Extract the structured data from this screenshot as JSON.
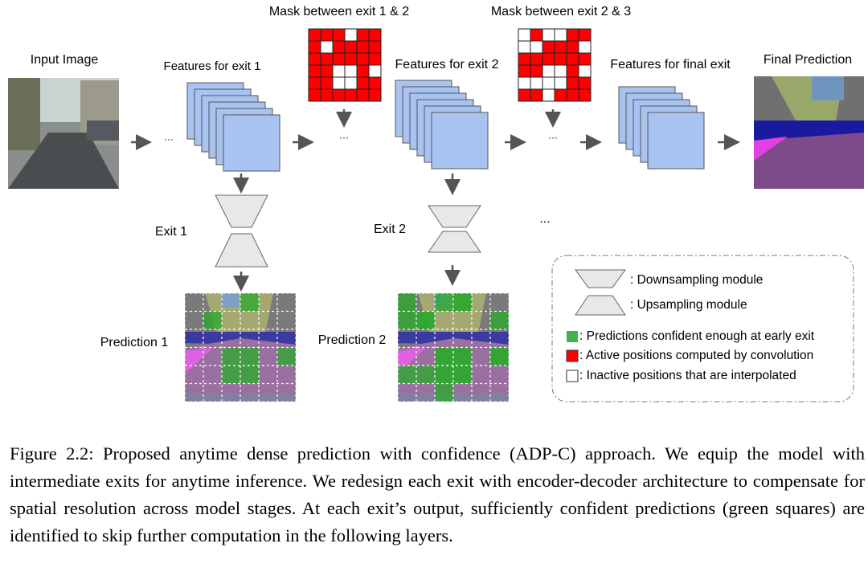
{
  "labels": {
    "input_image": "Input Image",
    "features_exit1": "Features for exit 1",
    "features_exit2": "Features for exit 2",
    "features_final": "Features for final exit",
    "final_prediction": "Final Prediction",
    "mask_1_2": "Mask between exit 1 & 2",
    "mask_2_3": "Mask between exit 2 & 3",
    "exit1": "Exit 1",
    "exit2": "Exit 2",
    "prediction1": "Prediction 1",
    "prediction2": "Prediction 2",
    "ellipsis": "...",
    "dots": "···"
  },
  "legend": {
    "downsampling": ": Downsampling module",
    "upsampling": ": Upsampling module",
    "green": ": Predictions confident enough at early exit",
    "red": ": Active positions computed by convolution",
    "white": ": Inactive positions that are interpolated"
  },
  "masks": {
    "mask_1_2": [
      [
        1,
        1,
        1,
        0,
        1,
        1
      ],
      [
        1,
        0,
        1,
        1,
        1,
        1
      ],
      [
        1,
        1,
        1,
        1,
        1,
        1
      ],
      [
        1,
        1,
        0,
        0,
        1,
        0
      ],
      [
        1,
        1,
        0,
        0,
        1,
        1
      ],
      [
        1,
        1,
        1,
        1,
        1,
        1
      ]
    ],
    "mask_2_3": [
      [
        0,
        1,
        0,
        0,
        1,
        1
      ],
      [
        0,
        0,
        1,
        1,
        1,
        0
      ],
      [
        1,
        1,
        1,
        1,
        1,
        1
      ],
      [
        1,
        1,
        0,
        0,
        1,
        0
      ],
      [
        0,
        0,
        0,
        0,
        1,
        1
      ],
      [
        1,
        1,
        0,
        1,
        1,
        1
      ]
    ]
  },
  "colors": {
    "feature": "#a9c3f0",
    "active": "#ff0000",
    "confident": "#2fa82f",
    "module": "#e8e8e8"
  },
  "caption": "Figure 2.2: Proposed anytime dense prediction with confidence (ADP-C) approach. We equip the model with intermediate exits for anytime inference. We redesign each exit with encoder-decoder architecture to compensate for spatial resolution across model stages. At each exit’s output, sufficiently confident predictions (green squares) are identified to skip further computation in the following layers."
}
